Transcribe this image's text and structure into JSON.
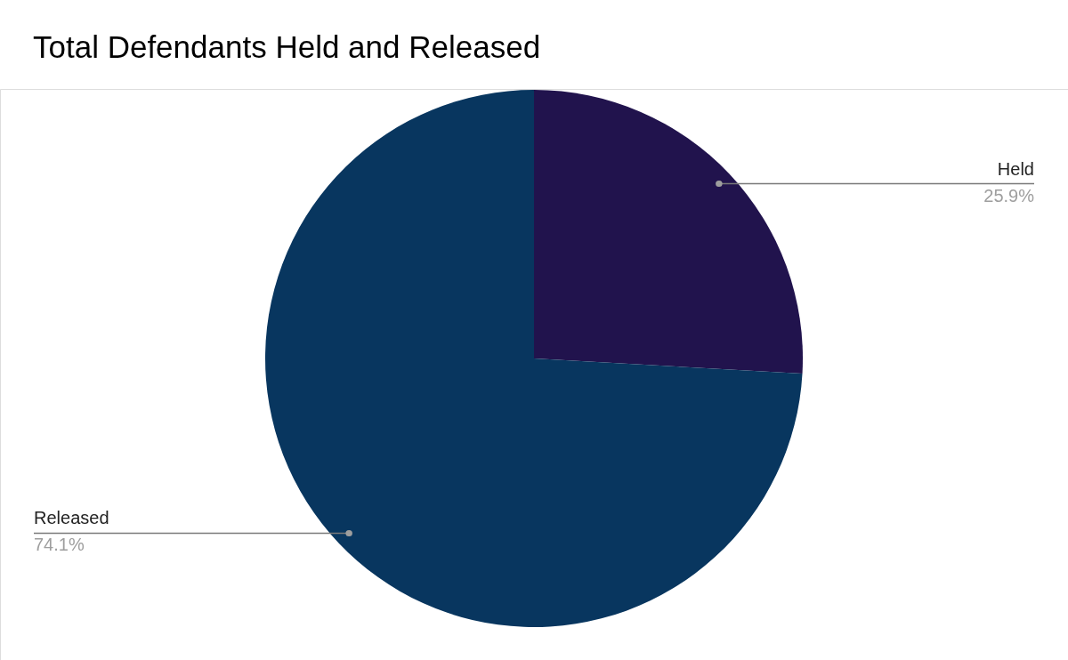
{
  "chart_data": {
    "type": "pie",
    "title": "Total Defendants Held and Released",
    "categories": [
      "Held",
      "Released"
    ],
    "values": [
      25.9,
      74.1
    ],
    "colors": [
      "#21134d",
      "#08365f"
    ],
    "value_labels": [
      "25.9%",
      "74.1%"
    ],
    "legend": false
  }
}
